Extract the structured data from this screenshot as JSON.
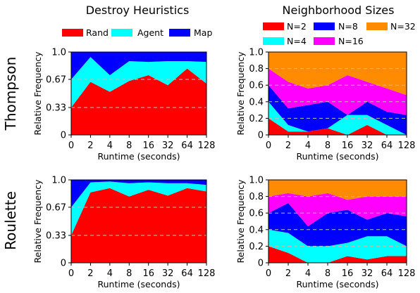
{
  "column_titles": [
    "Destroy Heuristics",
    "Neighborhood Sizes"
  ],
  "row_titles": [
    "Thompson",
    "Roulette"
  ],
  "legend_heuristics": [
    {
      "label": "Rand",
      "color": "#ff0000"
    },
    {
      "label": "Agent",
      "color": "#00ffff"
    },
    {
      "label": "Map",
      "color": "#0000ff"
    }
  ],
  "legend_sizes": [
    {
      "label": "N=2",
      "color": "#ff0000"
    },
    {
      "label": "N=8",
      "color": "#0000ff"
    },
    {
      "label": "N=32",
      "color": "#ff8c00"
    },
    {
      "label": "N=4",
      "color": "#00ffff"
    },
    {
      "label": "N=16",
      "color": "#ff00ff"
    }
  ],
  "chart_data": [
    {
      "type": "area",
      "stacked": true,
      "row": "Thompson",
      "column": "Destroy Heuristics",
      "xlabel": "Runtime (seconds)",
      "ylabel": "Relative Frequency",
      "x": [
        "0",
        "2",
        "4",
        "8",
        "16",
        "32",
        "64",
        "128"
      ],
      "ylim": [
        0,
        1
      ],
      "yticks": [
        "0",
        "0.33",
        "0.67",
        "1.0"
      ],
      "ytick_values": [
        0,
        0.33,
        0.67,
        1.0
      ],
      "gridlines_dashed": [
        0.33,
        0.67
      ],
      "series": [
        {
          "name": "Rand",
          "color": "#ff0000",
          "values": [
            0.33,
            0.64,
            0.52,
            0.65,
            0.72,
            0.6,
            0.8,
            0.62
          ]
        },
        {
          "name": "Agent",
          "color": "#00ffff",
          "values": [
            0.34,
            0.3,
            0.2,
            0.24,
            0.16,
            0.29,
            0.09,
            0.26
          ]
        },
        {
          "name": "Map",
          "color": "#0000ff",
          "values": [
            0.33,
            0.06,
            0.28,
            0.11,
            0.12,
            0.11,
            0.11,
            0.12
          ]
        }
      ]
    },
    {
      "type": "area",
      "stacked": true,
      "row": "Thompson",
      "column": "Neighborhood Sizes",
      "xlabel": "Runtime (seconds)",
      "ylabel": "Relative Frequency",
      "x": [
        "0",
        "2",
        "4",
        "8",
        "16",
        "32",
        "64",
        "128"
      ],
      "ylim": [
        0,
        1
      ],
      "yticks": [
        "0",
        "0.2",
        "0.4",
        "0.6",
        "0.8",
        "1.0"
      ],
      "ytick_values": [
        0,
        0.2,
        0.4,
        0.6,
        0.8,
        1.0
      ],
      "gridlines_dashed": [
        0.2,
        0.4,
        0.6,
        0.8
      ],
      "series": [
        {
          "name": "N=2",
          "color": "#ff0000",
          "values": [
            0.2,
            0.04,
            0.04,
            0.08,
            0.0,
            0.12,
            0.0,
            0.0
          ]
        },
        {
          "name": "N=4",
          "color": "#00ffff",
          "values": [
            0.2,
            0.08,
            0.0,
            0.0,
            0.24,
            0.12,
            0.12,
            0.0
          ]
        },
        {
          "name": "N=8",
          "color": "#0000ff",
          "values": [
            0.2,
            0.2,
            0.32,
            0.32,
            0.0,
            0.16,
            0.16,
            0.24
          ]
        },
        {
          "name": "N=16",
          "color": "#ff00ff",
          "values": [
            0.2,
            0.32,
            0.2,
            0.2,
            0.48,
            0.24,
            0.28,
            0.24
          ]
        },
        {
          "name": "N=32",
          "color": "#ff8c00",
          "values": [
            0.2,
            0.36,
            0.44,
            0.4,
            0.28,
            0.36,
            0.44,
            0.52
          ]
        }
      ]
    },
    {
      "type": "area",
      "stacked": true,
      "row": "Roulette",
      "column": "Destroy Heuristics",
      "xlabel": "Runtime (seconds)",
      "ylabel": "Relative Frequency",
      "x": [
        "0",
        "2",
        "4",
        "8",
        "16",
        "32",
        "64",
        "128"
      ],
      "ylim": [
        0,
        1
      ],
      "yticks": [
        "0",
        "0.33",
        "0.67",
        "1.0"
      ],
      "ytick_values": [
        0,
        0.33,
        0.67,
        1.0
      ],
      "gridlines_dashed": [
        0.33,
        0.67
      ],
      "series": [
        {
          "name": "Rand",
          "color": "#ff0000",
          "values": [
            0.33,
            0.85,
            0.9,
            0.8,
            0.88,
            0.81,
            0.9,
            0.86
          ]
        },
        {
          "name": "Agent",
          "color": "#00ffff",
          "values": [
            0.34,
            0.12,
            0.08,
            0.16,
            0.09,
            0.15,
            0.06,
            0.08
          ]
        },
        {
          "name": "Map",
          "color": "#0000ff",
          "values": [
            0.33,
            0.03,
            0.02,
            0.04,
            0.03,
            0.04,
            0.04,
            0.06
          ]
        }
      ]
    },
    {
      "type": "area",
      "stacked": true,
      "row": "Roulette",
      "column": "Neighborhood Sizes",
      "xlabel": "Runtime (seconds)",
      "ylabel": "Relative Frequency",
      "x": [
        "0",
        "2",
        "4",
        "8",
        "16",
        "32",
        "64",
        "128"
      ],
      "ylim": [
        0,
        1
      ],
      "yticks": [
        "0",
        "0.2",
        "0.4",
        "0.6",
        "0.8",
        "1.0"
      ],
      "ytick_values": [
        0,
        0.2,
        0.4,
        0.6,
        0.8,
        1.0
      ],
      "gridlines_dashed": [
        0.2,
        0.4,
        0.6,
        0.8
      ],
      "series": [
        {
          "name": "N=2",
          "color": "#ff0000",
          "values": [
            0.2,
            0.12,
            0.0,
            0.0,
            0.08,
            0.04,
            0.08,
            0.08
          ]
        },
        {
          "name": "N=4",
          "color": "#00ffff",
          "values": [
            0.2,
            0.24,
            0.2,
            0.2,
            0.16,
            0.28,
            0.24,
            0.12
          ]
        },
        {
          "name": "N=8",
          "color": "#0000ff",
          "values": [
            0.2,
            0.36,
            0.24,
            0.4,
            0.4,
            0.2,
            0.28,
            0.36
          ]
        },
        {
          "name": "N=16",
          "color": "#ff00ff",
          "values": [
            0.2,
            0.12,
            0.36,
            0.24,
            0.12,
            0.28,
            0.2,
            0.24
          ]
        },
        {
          "name": "N=32",
          "color": "#ff8c00",
          "values": [
            0.2,
            0.16,
            0.2,
            0.16,
            0.24,
            0.2,
            0.2,
            0.2
          ]
        }
      ]
    }
  ]
}
